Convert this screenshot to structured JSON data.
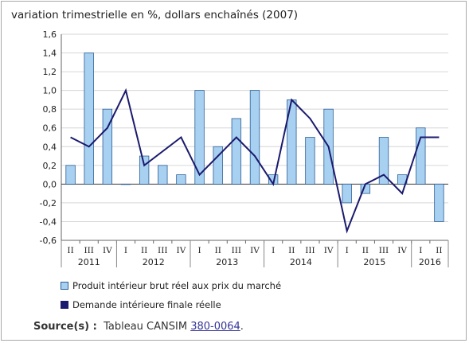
{
  "chart_data": {
    "type": "bar",
    "title": "variation trimestrielle en %, dollars enchaînés (2007)",
    "ylim": [
      -0.6,
      1.6
    ],
    "yticks": [
      "1,6",
      "1,4",
      "1,2",
      "1,0",
      "0,8",
      "0,6",
      "0,4",
      "0,2",
      "0,0",
      "-0,2",
      "-0,4",
      "-0,6"
    ],
    "ytick_values": [
      1.6,
      1.4,
      1.2,
      1.0,
      0.8,
      0.6,
      0.4,
      0.2,
      0.0,
      -0.2,
      -0.4,
      -0.6
    ],
    "categories": [
      "II",
      "III",
      "IV",
      "I",
      "II",
      "III",
      "IV",
      "I",
      "II",
      "III",
      "IV",
      "I",
      "II",
      "III",
      "IV",
      "I",
      "II",
      "III",
      "IV",
      "I",
      "II"
    ],
    "years": [
      {
        "label": "2011",
        "start": 0,
        "end": 2
      },
      {
        "label": "2012",
        "start": 3,
        "end": 6
      },
      {
        "label": "2013",
        "start": 7,
        "end": 10
      },
      {
        "label": "2014",
        "start": 11,
        "end": 14
      },
      {
        "label": "2015",
        "start": 15,
        "end": 18
      },
      {
        "label": "2016",
        "start": 19,
        "end": 20
      }
    ],
    "grid": true,
    "series": [
      {
        "name": "Produit intérieur brut réel aux prix du marché",
        "type": "bar",
        "color": "#a8d0f0",
        "stroke": "#2c5f96",
        "values": [
          0.2,
          1.4,
          0.8,
          0.0,
          0.3,
          0.2,
          0.1,
          1.0,
          0.4,
          0.7,
          1.0,
          0.1,
          0.9,
          0.5,
          0.8,
          -0.2,
          -0.1,
          0.5,
          0.1,
          0.6,
          -0.4
        ]
      },
      {
        "name": "Demande intérieure finale réelle",
        "type": "line",
        "color": "#1a1a6e",
        "values": [
          0.5,
          0.4,
          0.6,
          1.0,
          0.2,
          null,
          0.5,
          0.1,
          0.3,
          0.5,
          0.3,
          0.0,
          0.9,
          0.7,
          0.4,
          -0.5,
          0.0,
          0.1,
          -0.1,
          0.5,
          0.5
        ]
      }
    ],
    "legend_position": "bottom"
  },
  "source": {
    "label": "Source(s) :",
    "text": "Tableau CANSIM",
    "link": "380-0064",
    "suffix": "."
  }
}
